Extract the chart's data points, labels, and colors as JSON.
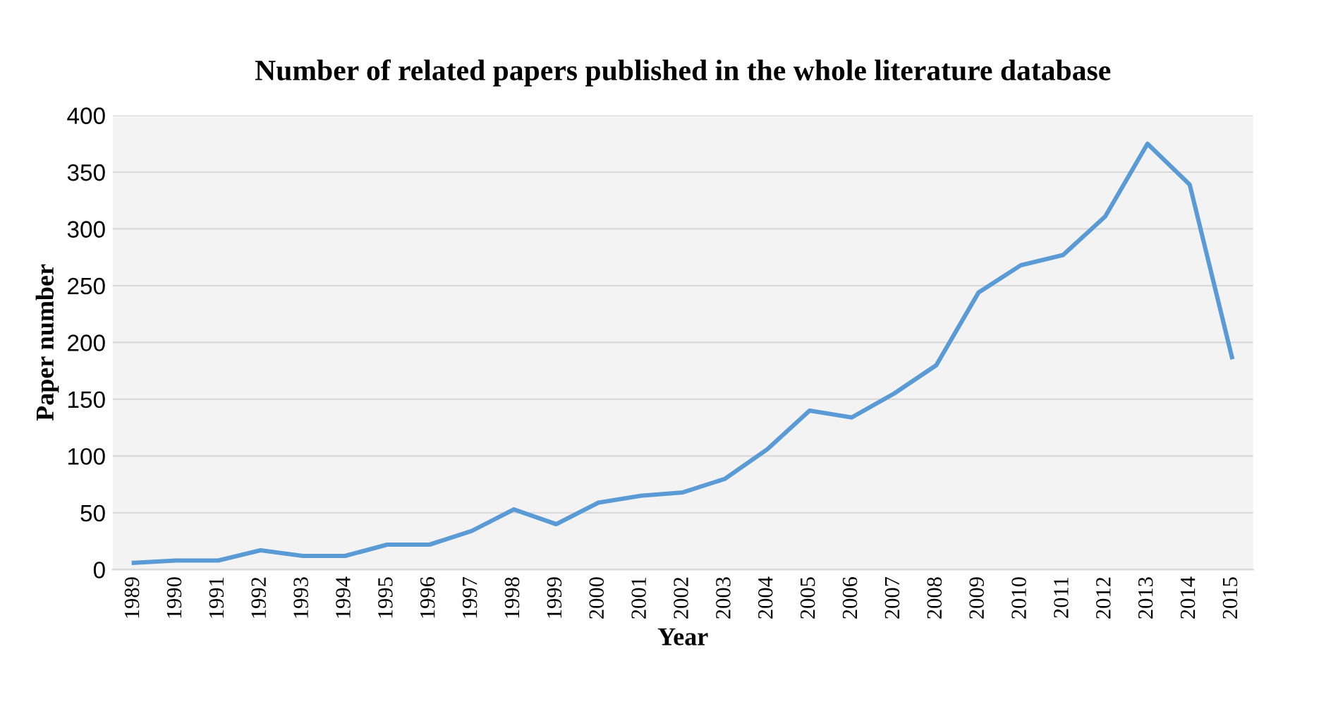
{
  "chart_data": {
    "type": "line",
    "title": "Number of related papers published in the whole literature database",
    "xlabel": "Year",
    "ylabel": "Paper number",
    "categories": [
      "1989",
      "1990",
      "1991",
      "1992",
      "1993",
      "1994",
      "1995",
      "1996",
      "1997",
      "1998",
      "1999",
      "2000",
      "2001",
      "2002",
      "2003",
      "2004",
      "2005",
      "2006",
      "2007",
      "2008",
      "2009",
      "2010",
      "2011",
      "2012",
      "2013",
      "2014",
      "2015"
    ],
    "series": [
      {
        "color": "#5b9bd5",
        "values": [
          6,
          8,
          8,
          17,
          12,
          12,
          22,
          22,
          34,
          53,
          40,
          59,
          65,
          68,
          80,
          106,
          140,
          134,
          155,
          180,
          244,
          268,
          277,
          311,
          375,
          339,
          187
        ]
      }
    ],
    "ylim": [
      0,
      400
    ],
    "yticks": [
      0,
      50,
      100,
      150,
      200,
      250,
      300,
      350,
      400
    ],
    "grid": "y",
    "marker": "none",
    "line_style": "solid",
    "legend": false
  }
}
